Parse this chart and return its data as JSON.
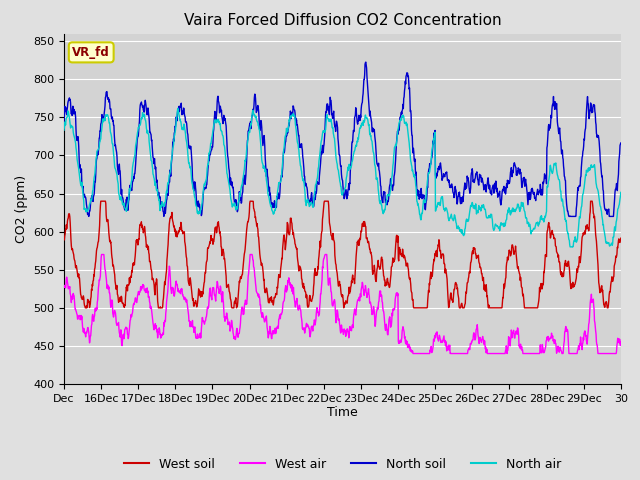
{
  "title": "Vaira Forced Diffusion CO2 Concentration",
  "xlabel": "Time",
  "ylabel": "CO2 (ppm)",
  "ylim": [
    400,
    860
  ],
  "yticks": [
    400,
    450,
    500,
    550,
    600,
    650,
    700,
    750,
    800,
    850
  ],
  "x_tick_labels": [
    "Dec",
    "16Dec",
    "17Dec",
    "18Dec",
    "19Dec",
    "20Dec",
    "21Dec",
    "22Dec",
    "23Dec",
    "24Dec",
    "25Dec",
    "26Dec",
    "27Dec",
    "28Dec",
    "29Dec",
    "30"
  ],
  "x_tick_positions": [
    0,
    1,
    2,
    3,
    4,
    5,
    6,
    7,
    8,
    9,
    10,
    11,
    12,
    13,
    14,
    15
  ],
  "background_color": "#e0e0e0",
  "plot_bg_color": "#d3d3d3",
  "grid_color": "#ffffff",
  "colors": {
    "west_soil": "#cc0000",
    "west_air": "#ff00ff",
    "north_soil": "#0000cc",
    "north_air": "#00cccc"
  },
  "legend_labels": [
    "West soil",
    "West air",
    "North soil",
    "North air"
  ],
  "annotation_text": "VR_fd",
  "annotation_bg": "#ffffcc",
  "annotation_border": "#cccc00",
  "linewidth": 1.0
}
